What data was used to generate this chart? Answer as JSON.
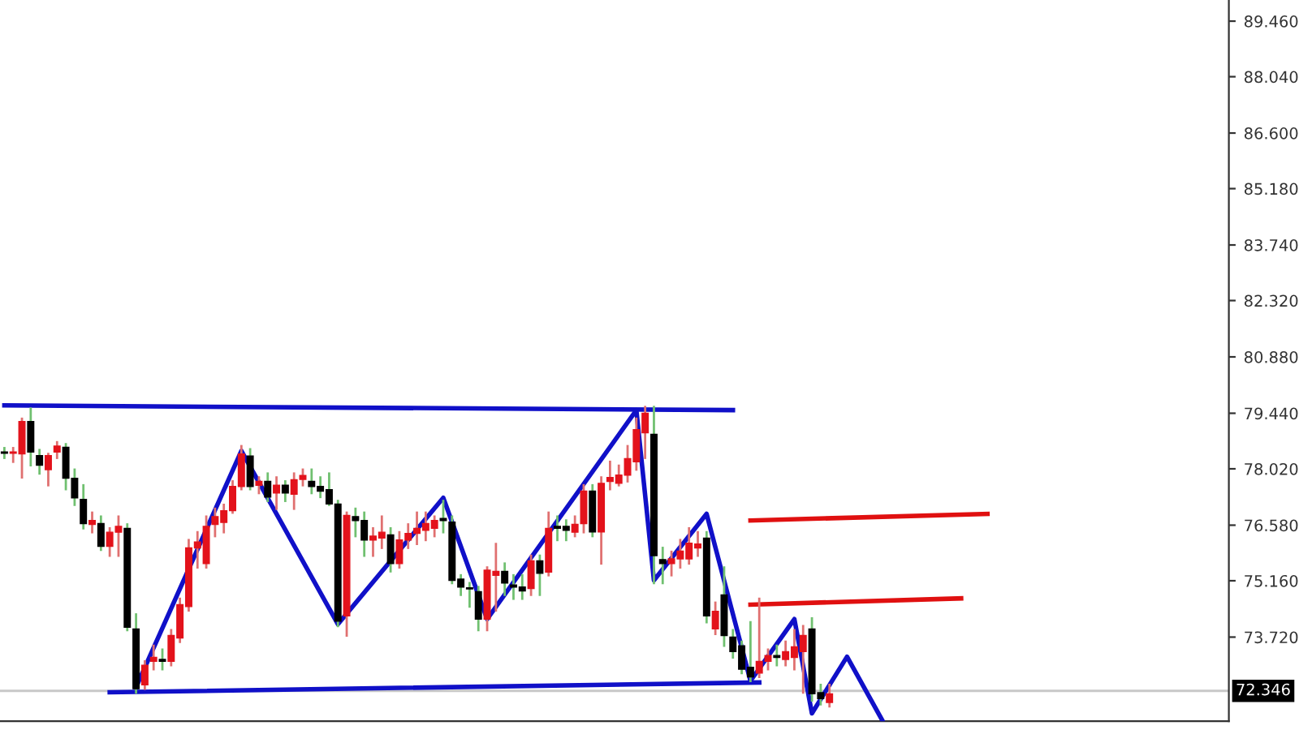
{
  "chart_data": {
    "type": "candlestick",
    "categories": [
      null,
      null,
      null,
      null,
      null,
      null,
      null,
      null,
      null,
      null,
      null,
      null,
      null,
      null,
      null,
      null,
      null,
      null,
      null,
      null,
      null,
      null,
      null,
      null,
      null,
      null,
      null,
      null,
      null,
      null,
      null,
      null,
      null,
      null,
      null,
      null,
      null,
      null,
      null,
      null,
      null,
      null,
      null,
      null,
      null,
      null,
      null,
      null,
      null,
      null,
      null,
      null,
      null,
      null,
      null,
      null,
      null,
      null,
      null,
      null,
      null,
      null,
      null,
      null,
      null,
      null,
      null,
      null,
      null,
      null,
      null,
      null,
      null,
      null,
      null,
      null,
      null,
      null,
      null,
      null,
      null,
      null,
      null,
      null,
      null,
      null,
      null,
      null,
      null,
      null,
      null,
      null,
      null,
      null,
      null,
      null,
      null,
      null,
      null,
      null,
      null,
      null,
      null,
      null,
      null,
      null,
      null,
      null,
      null,
      null,
      null,
      null,
      null,
      null,
      null,
      null,
      null,
      null,
      null,
      null,
      null,
      null,
      null,
      null,
      null,
      null,
      null,
      null,
      null,
      null,
      null,
      null,
      null,
      null,
      null,
      null,
      null,
      null,
      null,
      null
    ],
    "ohlc": [
      [
        78.45,
        78.55,
        78.3,
        78.42
      ],
      [
        78.42,
        78.55,
        78.2,
        78.45
      ],
      [
        78.4,
        79.3,
        77.8,
        79.23
      ],
      [
        79.23,
        79.56,
        78.11,
        78.45
      ],
      [
        78.36,
        78.5,
        77.9,
        78.11
      ],
      [
        78.0,
        78.4,
        77.6,
        78.36
      ],
      [
        78.45,
        78.7,
        78.3,
        78.6
      ],
      [
        78.57,
        78.65,
        77.5,
        77.78
      ],
      [
        77.78,
        78.0,
        77.1,
        77.28
      ],
      [
        77.24,
        77.6,
        76.5,
        76.62
      ],
      [
        76.6,
        76.9,
        76.4,
        76.7
      ],
      [
        76.62,
        76.8,
        75.95,
        76.04
      ],
      [
        76.04,
        76.5,
        75.8,
        76.4
      ],
      [
        76.4,
        76.8,
        75.8,
        76.55
      ],
      [
        76.5,
        76.6,
        73.9,
        73.97
      ],
      [
        73.93,
        74.3,
        72.3,
        72.4
      ],
      [
        72.5,
        73.1,
        72.4,
        73.0
      ],
      [
        73.1,
        73.5,
        72.9,
        73.2
      ],
      [
        73.15,
        73.4,
        72.9,
        73.1
      ],
      [
        73.1,
        73.9,
        73.0,
        73.76
      ],
      [
        73.7,
        74.7,
        73.6,
        74.55
      ],
      [
        74.5,
        76.2,
        74.4,
        76.0
      ],
      [
        76.0,
        76.4,
        75.5,
        76.15
      ],
      [
        75.6,
        76.8,
        75.5,
        76.55
      ],
      [
        76.6,
        77.0,
        76.3,
        76.8
      ],
      [
        76.65,
        77.1,
        76.4,
        76.95
      ],
      [
        76.95,
        77.7,
        76.9,
        77.57
      ],
      [
        77.57,
        78.6,
        77.5,
        78.4
      ],
      [
        78.35,
        78.52,
        77.5,
        77.57
      ],
      [
        77.6,
        77.8,
        77.4,
        77.7
      ],
      [
        77.7,
        77.9,
        77.2,
        77.3
      ],
      [
        77.4,
        77.8,
        77.0,
        77.6
      ],
      [
        77.6,
        77.7,
        77.2,
        77.4
      ],
      [
        77.37,
        77.9,
        77.0,
        77.74
      ],
      [
        77.75,
        78.0,
        77.6,
        77.85
      ],
      [
        77.7,
        78.0,
        77.4,
        77.57
      ],
      [
        77.57,
        77.8,
        77.3,
        77.45
      ],
      [
        77.49,
        77.9,
        77.1,
        77.12
      ],
      [
        77.12,
        77.2,
        74.0,
        74.13
      ],
      [
        74.26,
        76.9,
        73.76,
        76.83
      ],
      [
        76.8,
        77.0,
        76.3,
        76.7
      ],
      [
        76.7,
        76.9,
        75.8,
        76.2
      ],
      [
        76.2,
        76.5,
        75.8,
        76.3
      ],
      [
        76.25,
        76.8,
        76.0,
        76.4
      ],
      [
        76.33,
        76.5,
        75.4,
        75.6
      ],
      [
        75.6,
        76.4,
        75.5,
        76.2
      ],
      [
        76.2,
        76.6,
        76.0,
        76.37
      ],
      [
        76.37,
        76.9,
        76.1,
        76.5
      ],
      [
        76.45,
        76.9,
        76.2,
        76.62
      ],
      [
        76.5,
        76.8,
        76.3,
        76.7
      ],
      [
        76.75,
        77.2,
        76.4,
        76.7
      ],
      [
        76.66,
        76.8,
        75.1,
        75.17
      ],
      [
        75.2,
        75.3,
        74.8,
        75.0
      ],
      [
        74.98,
        75.1,
        74.5,
        74.95
      ],
      [
        74.88,
        75.0,
        73.9,
        74.18
      ],
      [
        74.18,
        75.5,
        73.9,
        75.43
      ],
      [
        75.3,
        76.1,
        74.4,
        75.4
      ],
      [
        75.4,
        75.6,
        74.8,
        75.1
      ],
      [
        75.05,
        75.3,
        74.7,
        75.0
      ],
      [
        75.0,
        75.3,
        74.7,
        74.9
      ],
      [
        74.96,
        75.8,
        74.8,
        75.67
      ],
      [
        75.67,
        75.8,
        74.8,
        75.35
      ],
      [
        75.38,
        76.9,
        75.3,
        76.5
      ],
      [
        76.55,
        76.8,
        76.2,
        76.5
      ],
      [
        76.55,
        76.7,
        76.2,
        76.45
      ],
      [
        76.4,
        76.8,
        76.3,
        76.6
      ],
      [
        76.62,
        77.6,
        76.4,
        77.45
      ],
      [
        77.45,
        77.6,
        76.3,
        76.41
      ],
      [
        76.41,
        77.8,
        75.6,
        77.65
      ],
      [
        77.7,
        78.2,
        77.5,
        77.8
      ],
      [
        77.65,
        78.1,
        77.6,
        77.86
      ],
      [
        77.86,
        78.6,
        77.7,
        78.28
      ],
      [
        78.2,
        79.3,
        78.0,
        79.02
      ],
      [
        78.94,
        79.6,
        78.3,
        79.44
      ],
      [
        78.9,
        79.6,
        75.1,
        75.8
      ],
      [
        75.7,
        76.0,
        75.1,
        75.6
      ],
      [
        75.6,
        75.9,
        75.3,
        75.72
      ],
      [
        75.72,
        76.2,
        75.5,
        75.92
      ],
      [
        75.72,
        76.5,
        75.6,
        76.12
      ],
      [
        76.0,
        76.4,
        75.8,
        76.1
      ],
      [
        76.25,
        76.4,
        74.1,
        74.26
      ],
      [
        73.93,
        74.6,
        73.8,
        74.38
      ],
      [
        74.8,
        75.5,
        73.5,
        73.76
      ],
      [
        73.72,
        73.9,
        73.2,
        73.35
      ],
      [
        73.5,
        73.6,
        72.8,
        72.9
      ],
      [
        72.95,
        74.1,
        72.6,
        72.7
      ],
      [
        72.8,
        74.7,
        72.7,
        73.1
      ],
      [
        73.1,
        73.4,
        72.9,
        73.25
      ],
      [
        73.25,
        73.5,
        73.0,
        73.2
      ],
      [
        73.15,
        73.6,
        73.0,
        73.35
      ],
      [
        73.2,
        73.9,
        72.9,
        73.47
      ],
      [
        73.35,
        74.0,
        72.3,
        73.76
      ],
      [
        73.93,
        74.2,
        72.1,
        72.27
      ],
      [
        72.3,
        72.5,
        72.0,
        72.15
      ],
      [
        72.05,
        72.5,
        71.95,
        72.27
      ],
      null,
      null,
      null,
      null,
      null,
      null,
      null,
      null,
      null,
      null,
      null,
      null,
      null,
      null,
      null,
      null,
      null,
      null,
      null,
      null,
      null,
      null,
      null,
      null,
      null,
      null,
      null,
      null,
      null,
      null,
      null,
      null,
      null,
      null,
      null,
      null,
      null,
      null,
      null,
      null,
      null,
      null,
      null,
      null,
      null
    ],
    "series": [
      {
        "type": "line",
        "color": "#1010c8",
        "values": [
          79.64,
          null,
          null,
          null,
          null,
          null,
          null,
          null,
          null,
          null,
          null,
          null,
          null,
          null,
          null,
          null,
          null,
          null,
          null,
          null,
          null,
          null,
          null,
          null,
          null,
          null,
          null,
          null,
          null,
          null,
          null,
          null,
          null,
          null,
          null,
          null,
          null,
          null,
          null,
          null,
          null,
          null,
          null,
          null,
          null,
          null,
          null,
          null,
          null,
          null,
          null,
          null,
          null,
          null,
          null,
          null,
          null,
          null,
          null,
          null,
          null,
          null,
          null,
          null,
          null,
          null,
          null,
          null,
          null,
          null,
          null,
          null,
          null,
          null,
          null,
          null,
          null,
          null,
          null,
          null,
          null,
          null,
          null,
          79.52,
          null,
          null,
          null,
          null,
          null,
          null,
          null,
          null,
          null,
          null,
          null,
          null,
          null,
          null,
          null,
          null,
          null,
          null,
          null,
          null,
          null,
          null,
          null,
          null,
          null,
          null,
          null,
          null,
          null,
          null,
          null,
          null,
          null,
          null,
          null,
          null,
          null,
          null,
          null,
          null,
          null,
          null,
          null,
          null,
          null,
          null,
          null,
          null,
          null,
          null,
          null,
          null,
          null,
          null,
          null,
          null
        ]
      },
      {
        "type": "line",
        "color": "#1010c8",
        "values": [
          null,
          null,
          null,
          null,
          null,
          null,
          null,
          null,
          null,
          null,
          null,
          null,
          72.31,
          null,
          null,
          null,
          null,
          null,
          null,
          null,
          null,
          null,
          null,
          null,
          null,
          null,
          null,
          null,
          null,
          null,
          null,
          null,
          null,
          null,
          null,
          null,
          null,
          null,
          null,
          null,
          null,
          null,
          null,
          null,
          null,
          null,
          null,
          null,
          null,
          null,
          null,
          null,
          null,
          null,
          null,
          null,
          null,
          null,
          null,
          null,
          null,
          null,
          null,
          null,
          null,
          null,
          null,
          null,
          null,
          null,
          null,
          null,
          null,
          null,
          null,
          null,
          null,
          null,
          null,
          null,
          null,
          null,
          null,
          null,
          null,
          null,
          72.56,
          null,
          null,
          null,
          null,
          null,
          null,
          null,
          null,
          null,
          null,
          null,
          null,
          null,
          null,
          null,
          null,
          null,
          null,
          null,
          null,
          null,
          null,
          null,
          null,
          null,
          null,
          null,
          null,
          null,
          null,
          null,
          null,
          null,
          null,
          null,
          null,
          null,
          null,
          null,
          null,
          null,
          null,
          null,
          null,
          null,
          null,
          null,
          null,
          null,
          null,
          null,
          null,
          null
        ]
      },
      {
        "type": "line",
        "color": "#1010c8",
        "values": [
          null,
          null,
          null,
          null,
          null,
          null,
          null,
          null,
          null,
          null,
          null,
          null,
          null,
          null,
          null,
          72.44,
          null,
          null,
          null,
          null,
          null,
          null,
          null,
          null,
          null,
          null,
          null,
          78.48,
          null,
          null,
          null,
          null,
          null,
          null,
          null,
          null,
          null,
          null,
          74.05,
          null,
          null,
          null,
          null,
          null,
          null,
          null,
          null,
          null,
          null,
          null,
          77.28,
          null,
          null,
          null,
          null,
          74.18,
          null,
          null,
          null,
          null,
          null,
          null,
          null,
          null,
          null,
          null,
          null,
          null,
          null,
          null,
          null,
          null,
          79.52,
          null,
          75.17,
          null,
          null,
          null,
          null,
          null,
          76.87,
          null,
          null,
          null,
          null,
          72.6,
          null,
          null,
          null,
          null,
          74.18,
          null,
          71.77,
          null,
          null,
          null,
          73.22,
          null,
          null,
          null,
          71.6,
          null,
          null,
          null,
          null,
          null,
          null,
          null,
          null,
          null,
          null,
          null,
          null,
          null,
          null,
          null,
          null,
          null,
          null,
          null,
          null,
          null,
          null,
          null,
          null,
          null,
          null,
          null,
          null,
          null,
          null,
          null,
          null,
          null,
          null,
          null,
          null,
          null,
          null,
          null
        ]
      },
      {
        "type": "line",
        "color": "#e01010",
        "values": [
          null,
          null,
          null,
          null,
          null,
          null,
          null,
          null,
          null,
          null,
          null,
          null,
          null,
          null,
          null,
          null,
          null,
          null,
          null,
          null,
          null,
          null,
          null,
          null,
          null,
          null,
          null,
          null,
          null,
          null,
          null,
          null,
          null,
          null,
          null,
          null,
          null,
          null,
          null,
          null,
          null,
          null,
          null,
          null,
          null,
          null,
          null,
          null,
          null,
          null,
          null,
          null,
          null,
          null,
          null,
          null,
          null,
          null,
          null,
          null,
          null,
          null,
          null,
          null,
          null,
          null,
          null,
          null,
          null,
          null,
          null,
          null,
          null,
          null,
          null,
          null,
          null,
          null,
          null,
          null,
          null,
          null,
          null,
          null,
          null,
          76.7,
          null,
          null,
          null,
          null,
          null,
          null,
          null,
          null,
          null,
          null,
          null,
          null,
          null,
          null,
          null,
          null,
          null,
          null,
          null,
          null,
          null,
          null,
          null,
          null,
          null,
          null,
          76.87,
          null,
          null,
          null,
          null,
          null,
          null,
          null,
          null,
          null,
          null,
          null,
          null,
          null,
          null,
          null,
          null,
          null,
          null,
          null,
          null,
          null,
          null,
          null,
          null,
          null,
          null,
          null
        ]
      },
      {
        "type": "line",
        "color": "#e01010",
        "values": [
          null,
          null,
          null,
          null,
          null,
          null,
          null,
          null,
          null,
          null,
          null,
          null,
          null,
          null,
          null,
          null,
          null,
          null,
          null,
          null,
          null,
          null,
          null,
          null,
          null,
          null,
          null,
          null,
          null,
          null,
          null,
          null,
          null,
          null,
          null,
          null,
          null,
          null,
          null,
          null,
          null,
          null,
          null,
          null,
          null,
          null,
          null,
          null,
          null,
          null,
          null,
          null,
          null,
          null,
          null,
          null,
          null,
          null,
          null,
          null,
          null,
          null,
          null,
          null,
          null,
          null,
          null,
          null,
          null,
          null,
          null,
          null,
          null,
          null,
          null,
          null,
          null,
          null,
          null,
          null,
          null,
          null,
          null,
          null,
          null,
          74.55,
          null,
          null,
          null,
          null,
          null,
          null,
          null,
          null,
          null,
          null,
          null,
          null,
          null,
          null,
          null,
          null,
          null,
          null,
          null,
          null,
          null,
          null,
          null,
          74.71,
          null,
          null,
          null,
          null,
          null,
          null,
          null,
          null,
          null,
          null,
          null,
          null,
          null,
          null,
          null,
          null,
          null,
          null,
          null,
          null,
          null,
          null,
          null,
          null,
          null,
          null,
          null,
          null,
          null,
          null
        ]
      }
    ],
    "ref_lines": [
      {
        "axis": "y",
        "value": 72.346,
        "label": "72.346",
        "color": "#c8c8c8"
      }
    ],
    "ylim": [
      71.57,
      90.0
    ],
    "yticks": [
      {
        "value": 73.72,
        "label": "73.720"
      },
      {
        "value": 75.16,
        "label": "75.160"
      },
      {
        "value": 76.58,
        "label": "76.580"
      },
      {
        "value": 78.02,
        "label": "78.020"
      },
      {
        "value": 79.44,
        "label": "79.440"
      },
      {
        "value": 80.88,
        "label": "80.880"
      },
      {
        "value": 82.32,
        "label": "82.320"
      },
      {
        "value": 83.74,
        "label": "83.740"
      },
      {
        "value": 85.18,
        "label": "85.180"
      },
      {
        "value": 86.6,
        "label": "86.600"
      },
      {
        "value": 88.04,
        "label": "88.040"
      },
      {
        "value": 89.46,
        "label": "89.460"
      }
    ],
    "tick_labels": "y"
  }
}
